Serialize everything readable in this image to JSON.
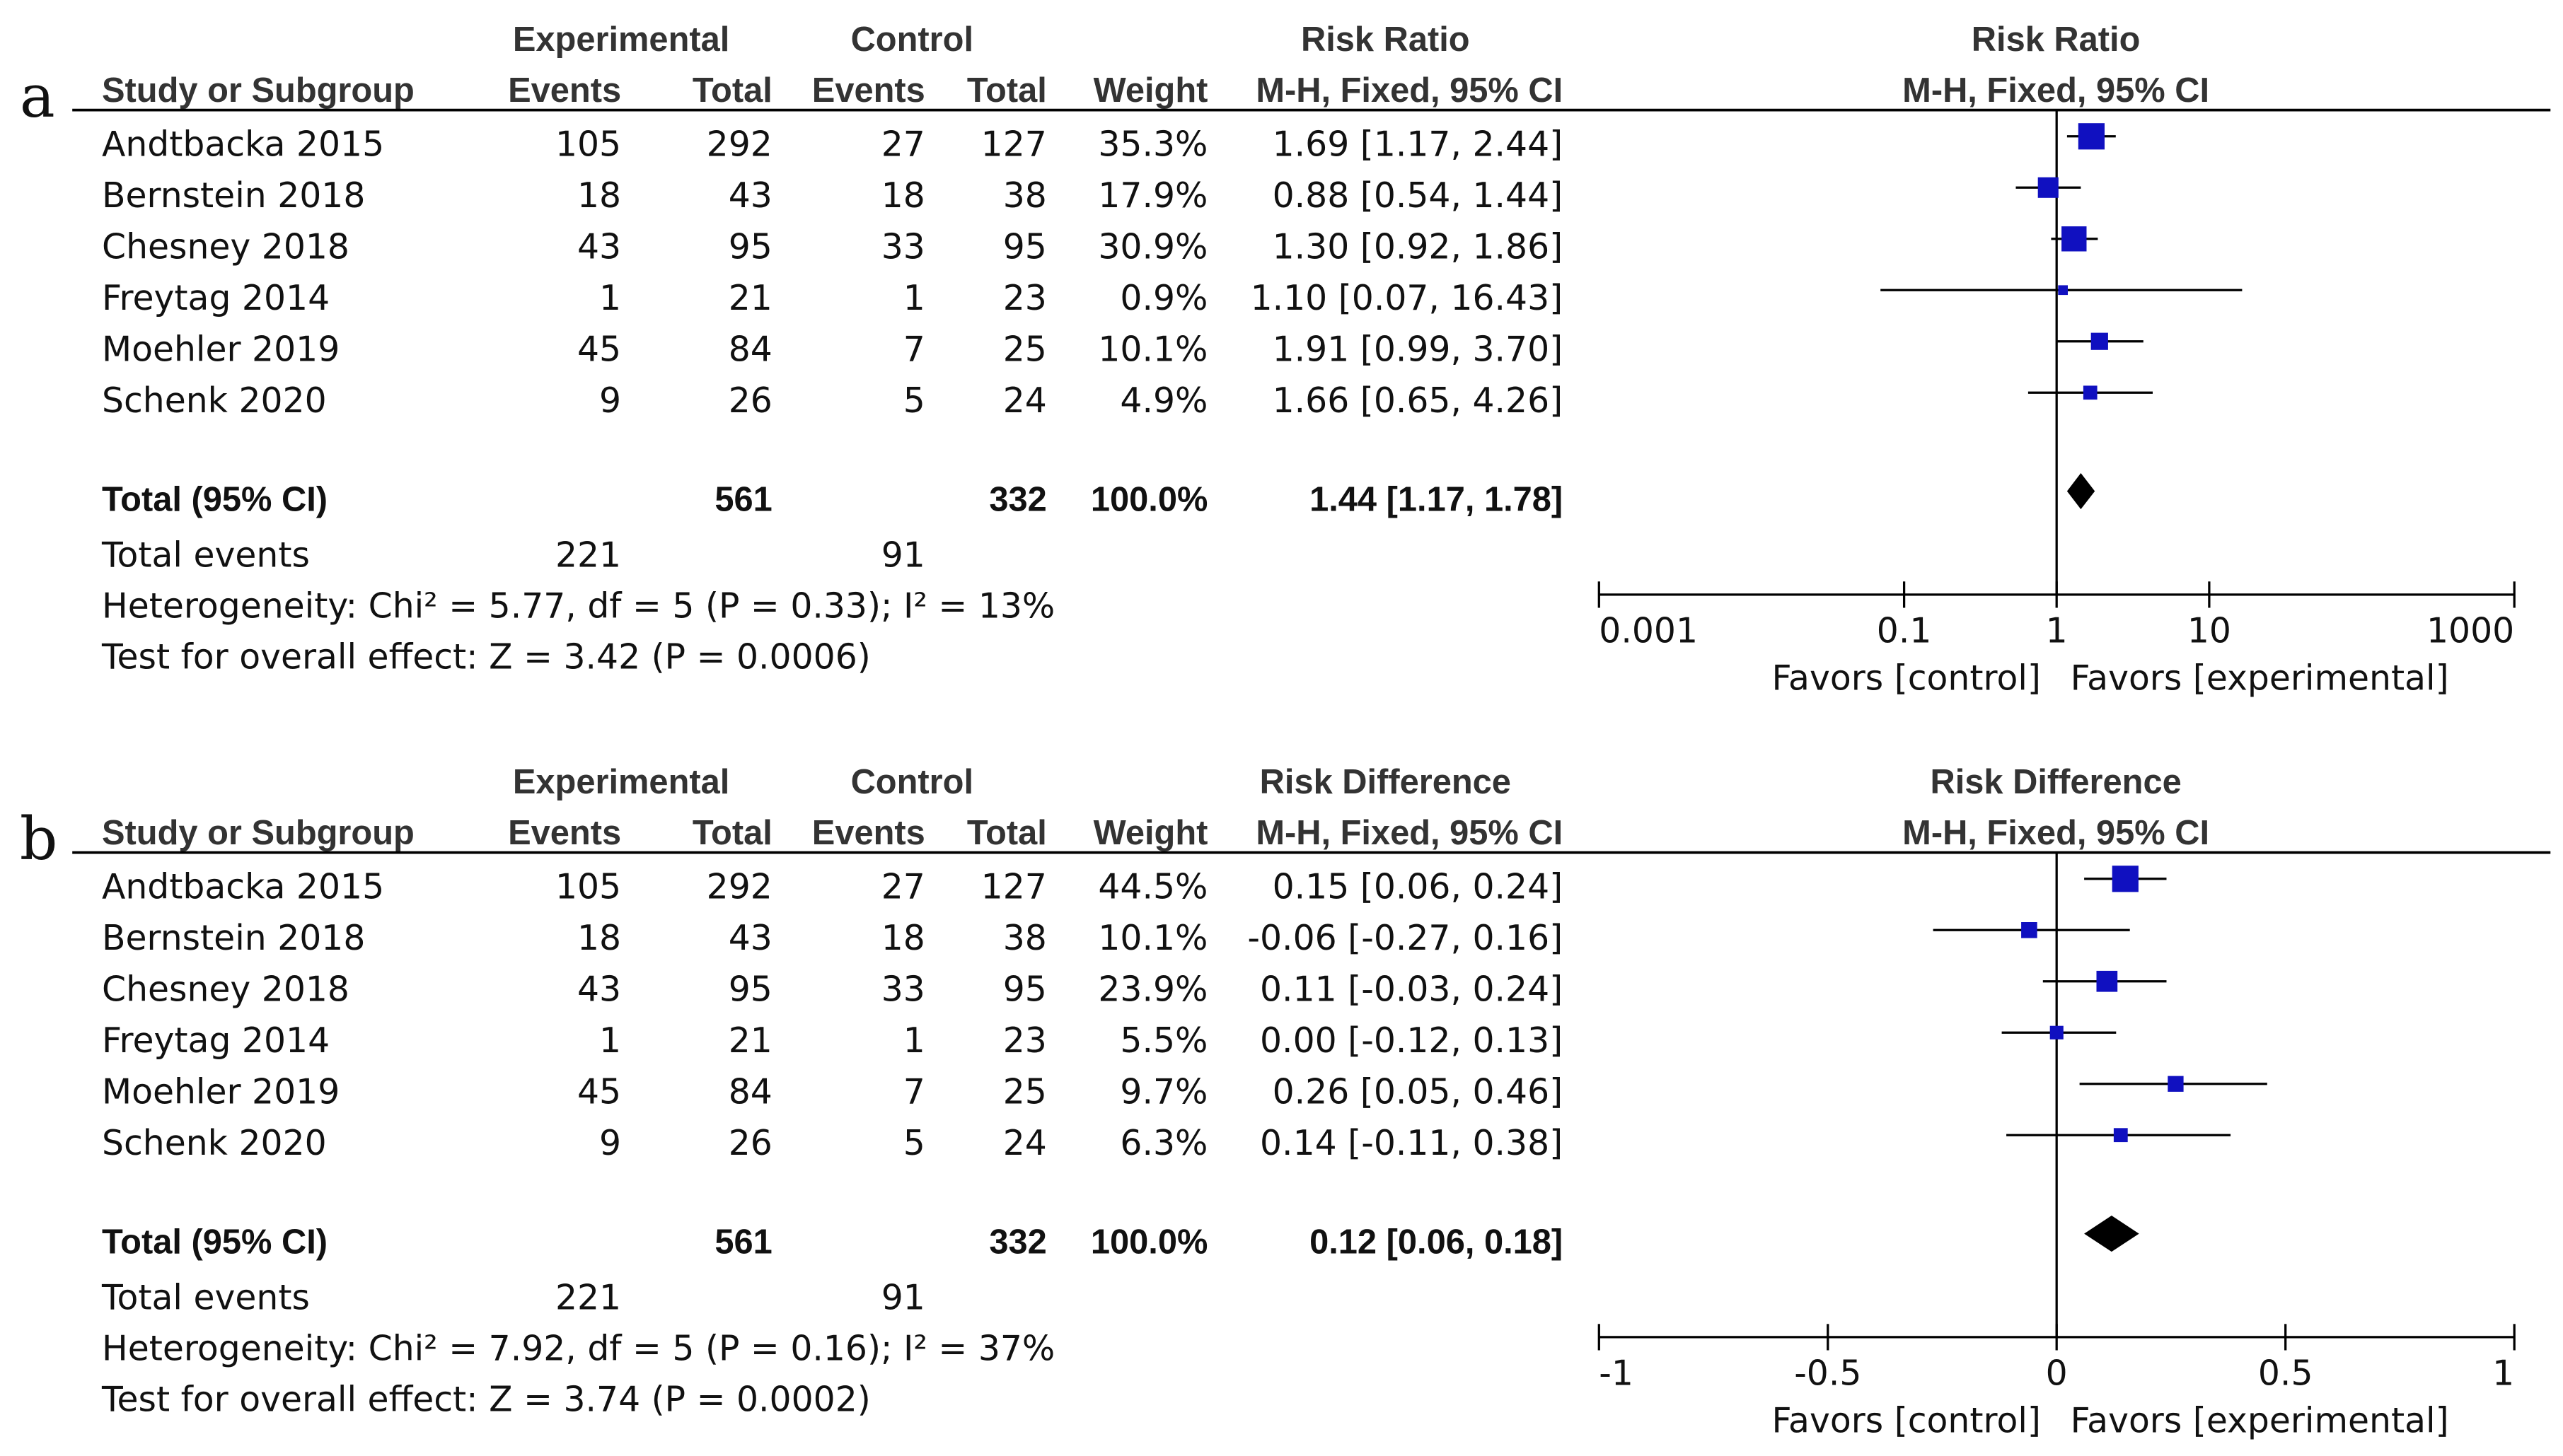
{
  "columns": {
    "study": "Study or Subgroup",
    "experimental": "Experimental",
    "control": "Control",
    "events": "Events",
    "total": "Total",
    "weight": "Weight",
    "method": "M-H, Fixed, 95% CI"
  },
  "panels": [
    {
      "label": "a",
      "measure": "Risk Ratio",
      "studies": [
        {
          "name": "Andtbacka 2015",
          "exp_events": "105",
          "exp_total": "292",
          "ctl_events": "27",
          "ctl_total": "127",
          "weight": "35.3%",
          "ci_text": "1.69 [1.17, 2.44]"
        },
        {
          "name": "Bernstein 2018",
          "exp_events": "18",
          "exp_total": "43",
          "ctl_events": "18",
          "ctl_total": "38",
          "weight": "17.9%",
          "ci_text": "0.88 [0.54, 1.44]"
        },
        {
          "name": "Chesney 2018",
          "exp_events": "43",
          "exp_total": "95",
          "ctl_events": "33",
          "ctl_total": "95",
          "weight": "30.9%",
          "ci_text": "1.30 [0.92, 1.86]"
        },
        {
          "name": "Freytag 2014",
          "exp_events": "1",
          "exp_total": "21",
          "ctl_events": "1",
          "ctl_total": "23",
          "weight": "0.9%",
          "ci_text": "1.10 [0.07, 16.43]"
        },
        {
          "name": "Moehler 2019",
          "exp_events": "45",
          "exp_total": "84",
          "ctl_events": "7",
          "ctl_total": "25",
          "weight": "10.1%",
          "ci_text": "1.91 [0.99, 3.70]"
        },
        {
          "name": "Schenk 2020",
          "exp_events": "9",
          "exp_total": "26",
          "ctl_events": "5",
          "ctl_total": "24",
          "weight": "4.9%",
          "ci_text": "1.66 [0.65, 4.26]"
        }
      ],
      "total_label": "Total (95% CI)",
      "total_exp": "561",
      "total_ctl": "332",
      "total_weight": "100.0%",
      "total_ci_text": "1.44 [1.17, 1.78]",
      "total_events_label": "Total events",
      "total_events_exp": "221",
      "total_events_ctl": "91",
      "heterogeneity": "Heterogeneity: Chi² = 5.77, df = 5 (P = 0.33); I² = 13%",
      "overall": "Test for overall effect: Z = 3.42 (P = 0.0006)",
      "favors_left": "Favors [control]",
      "favors_right": "Favors [experimental]"
    },
    {
      "label": "b",
      "measure": "Risk Difference",
      "studies": [
        {
          "name": "Andtbacka 2015",
          "exp_events": "105",
          "exp_total": "292",
          "ctl_events": "27",
          "ctl_total": "127",
          "weight": "44.5%",
          "ci_text": "0.15 [0.06, 0.24]"
        },
        {
          "name": "Bernstein 2018",
          "exp_events": "18",
          "exp_total": "43",
          "ctl_events": "18",
          "ctl_total": "38",
          "weight": "10.1%",
          "ci_text": "-0.06 [-0.27, 0.16]"
        },
        {
          "name": "Chesney 2018",
          "exp_events": "43",
          "exp_total": "95",
          "ctl_events": "33",
          "ctl_total": "95",
          "weight": "23.9%",
          "ci_text": "0.11 [-0.03, 0.24]"
        },
        {
          "name": "Freytag 2014",
          "exp_events": "1",
          "exp_total": "21",
          "ctl_events": "1",
          "ctl_total": "23",
          "weight": "5.5%",
          "ci_text": "0.00 [-0.12, 0.13]"
        },
        {
          "name": "Moehler 2019",
          "exp_events": "45",
          "exp_total": "84",
          "ctl_events": "7",
          "ctl_total": "25",
          "weight": "9.7%",
          "ci_text": "0.26 [0.05, 0.46]"
        },
        {
          "name": "Schenk 2020",
          "exp_events": "9",
          "exp_total": "26",
          "ctl_events": "5",
          "ctl_total": "24",
          "weight": "6.3%",
          "ci_text": "0.14 [-0.11, 0.38]"
        }
      ],
      "total_label": "Total (95% CI)",
      "total_exp": "561",
      "total_ctl": "332",
      "total_weight": "100.0%",
      "total_ci_text": "0.12 [0.06, 0.18]",
      "total_events_label": "Total events",
      "total_events_exp": "221",
      "total_events_ctl": "91",
      "heterogeneity": "Heterogeneity: Chi² = 7.92, df = 5 (P = 0.16); I² = 37%",
      "overall": "Test for overall effect: Z = 3.74 (P = 0.0002)",
      "favors_left": "Favors [control]",
      "favors_right": "Favors [experimental]"
    }
  ],
  "colors": {
    "marker": "#1010c0",
    "diamond": "#000000",
    "line": "#000000"
  },
  "chart_data": [
    {
      "type": "forest",
      "title": "Risk Ratio",
      "subtitle": "M-H, Fixed, 95% CI",
      "scale": "log",
      "xlim": [
        0.001,
        1000
      ],
      "ticks": [
        0.001,
        0.1,
        1,
        10,
        1000
      ],
      "tick_labels": [
        "0.001",
        "0.1",
        "1",
        "10",
        "1000"
      ],
      "null_value": 1,
      "points": [
        {
          "study": "Andtbacka 2015",
          "est": 1.69,
          "lo": 1.17,
          "hi": 2.44,
          "weight": 35.3
        },
        {
          "study": "Bernstein 2018",
          "est": 0.88,
          "lo": 0.54,
          "hi": 1.44,
          "weight": 17.9
        },
        {
          "study": "Chesney 2018",
          "est": 1.3,
          "lo": 0.92,
          "hi": 1.86,
          "weight": 30.9
        },
        {
          "study": "Freytag 2014",
          "est": 1.1,
          "lo": 0.07,
          "hi": 16.43,
          "weight": 0.9
        },
        {
          "study": "Moehler 2019",
          "est": 1.91,
          "lo": 0.99,
          "hi": 3.7,
          "weight": 10.1
        },
        {
          "study": "Schenk 2020",
          "est": 1.66,
          "lo": 0.65,
          "hi": 4.26,
          "weight": 4.9
        }
      ],
      "pooled": {
        "est": 1.44,
        "lo": 1.17,
        "hi": 1.78
      }
    },
    {
      "type": "forest",
      "title": "Risk Difference",
      "subtitle": "M-H, Fixed, 95% CI",
      "scale": "linear",
      "xlim": [
        -1,
        1
      ],
      "ticks": [
        -1,
        -0.5,
        0,
        0.5,
        1
      ],
      "tick_labels": [
        "-1",
        "-0.5",
        "0",
        "0.5",
        "1"
      ],
      "null_value": 0,
      "points": [
        {
          "study": "Andtbacka 2015",
          "est": 0.15,
          "lo": 0.06,
          "hi": 0.24,
          "weight": 44.5
        },
        {
          "study": "Bernstein 2018",
          "est": -0.06,
          "lo": -0.27,
          "hi": 0.16,
          "weight": 10.1
        },
        {
          "study": "Chesney 2018",
          "est": 0.11,
          "lo": -0.03,
          "hi": 0.24,
          "weight": 23.9
        },
        {
          "study": "Freytag 2014",
          "est": 0.0,
          "lo": -0.12,
          "hi": 0.13,
          "weight": 5.5
        },
        {
          "study": "Moehler 2019",
          "est": 0.26,
          "lo": 0.05,
          "hi": 0.46,
          "weight": 9.7
        },
        {
          "study": "Schenk 2020",
          "est": 0.14,
          "lo": -0.11,
          "hi": 0.38,
          "weight": 6.3
        }
      ],
      "pooled": {
        "est": 0.12,
        "lo": 0.06,
        "hi": 0.18
      }
    }
  ]
}
